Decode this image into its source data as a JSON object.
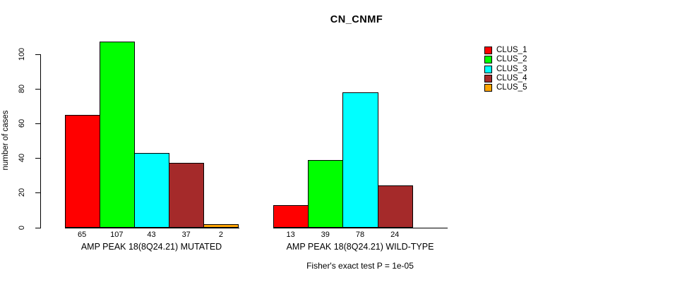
{
  "chart_data": {
    "type": "bar",
    "title": "CN_CNMF",
    "ylabel": "number of cases",
    "xlabel": "",
    "ylim": [
      0,
      110
    ],
    "yticks": [
      0,
      20,
      40,
      60,
      80,
      100
    ],
    "grid": false,
    "legend_position": "right",
    "legend": [
      {
        "label": "CLUS_1",
        "color": "#FF0000"
      },
      {
        "label": "CLUS_2",
        "color": "#00FF00"
      },
      {
        "label": "CLUS_3",
        "color": "#00FFFF"
      },
      {
        "label": "CLUS_4",
        "color": "#A52A2A"
      },
      {
        "label": "CLUS_5",
        "color": "#FFA500"
      }
    ],
    "groups": [
      {
        "label": "AMP PEAK 18(8Q24.21) MUTATED",
        "values": [
          65,
          107,
          43,
          37,
          2
        ]
      },
      {
        "label": "AMP PEAK 18(8Q24.21) WILD-TYPE",
        "values": [
          13,
          39,
          78,
          24,
          0
        ]
      }
    ],
    "annotation": "Fisher's exact test P = 1e-05"
  },
  "colors": {
    "background": "#FFFFFF",
    "axis": "#000000",
    "text": "#000000"
  }
}
